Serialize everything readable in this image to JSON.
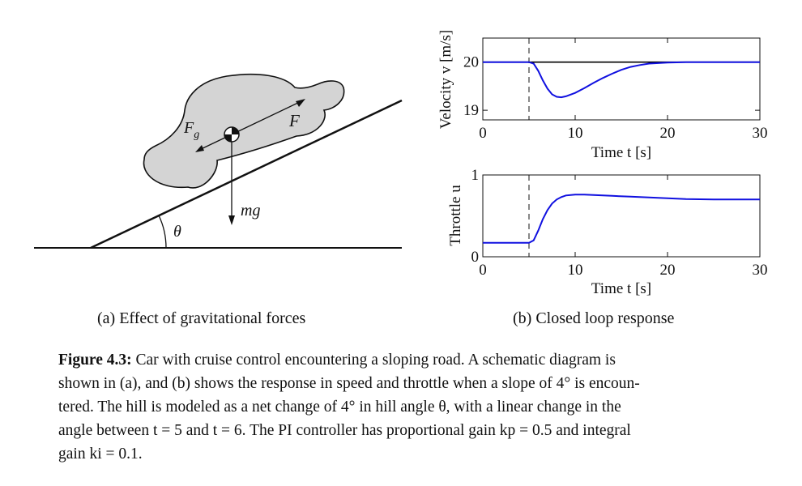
{
  "panel_a": {
    "caption": "(a) Effect of gravitational forces",
    "labels": {
      "gravity_force": "F",
      "gravity_subscript": "g",
      "drive_force": "F",
      "weight": "mg",
      "angle": "θ"
    }
  },
  "panel_b": {
    "caption": "(b) Closed loop response"
  },
  "chart_data": [
    {
      "type": "line",
      "ylabel": "Velocity v [m/s]",
      "xlabel": "Time t [s]",
      "xlim": [
        0,
        30
      ],
      "ylim": [
        18.8,
        20.5
      ],
      "xticks": [
        "0",
        "10",
        "20",
        "30"
      ],
      "yticks": [
        "19",
        "20"
      ],
      "reference_line": {
        "y": 20,
        "color": "#000000"
      },
      "event_marker": {
        "x": 5,
        "style": "dashed"
      },
      "series": [
        {
          "color": "#1010e0",
          "x": [
            0,
            5,
            5.5,
            6,
            6.5,
            7,
            7.5,
            8,
            8.5,
            9,
            10,
            11,
            12,
            13,
            14,
            15,
            16,
            17,
            18,
            20,
            22,
            25,
            30
          ],
          "y": [
            20,
            20,
            19.97,
            19.82,
            19.62,
            19.45,
            19.33,
            19.28,
            19.27,
            19.29,
            19.36,
            19.46,
            19.57,
            19.67,
            19.76,
            19.84,
            19.9,
            19.94,
            19.97,
            19.99,
            20.0,
            20.0,
            20.0
          ]
        }
      ]
    },
    {
      "type": "line",
      "ylabel": "Throttle u",
      "xlabel": "Time t [s]",
      "xlim": [
        0,
        30
      ],
      "ylim": [
        0,
        1
      ],
      "xticks": [
        "0",
        "10",
        "20",
        "30"
      ],
      "yticks": [
        "0",
        "1"
      ],
      "event_marker": {
        "x": 5,
        "style": "dashed"
      },
      "series": [
        {
          "color": "#1010e0",
          "x": [
            0,
            5,
            5.5,
            6,
            6.5,
            7,
            7.5,
            8,
            8.5,
            9,
            10,
            11,
            12,
            14,
            16,
            18,
            20,
            22,
            25,
            30
          ],
          "y": [
            0.17,
            0.17,
            0.2,
            0.32,
            0.46,
            0.57,
            0.65,
            0.7,
            0.73,
            0.75,
            0.76,
            0.76,
            0.755,
            0.745,
            0.735,
            0.725,
            0.715,
            0.705,
            0.7,
            0.7
          ]
        }
      ]
    }
  ],
  "caption": {
    "label": "Figure 4.3:",
    "lines": [
      "Car with cruise control encountering a sloping road. A schematic diagram is",
      "shown in (a), and (b) shows the response in speed and throttle when a slope of 4° is encoun-",
      "tered. The hill is modeled as a net change of 4° in hill angle θ, with a linear change in the",
      "angle between t = 5 and t = 6. The PI controller has proportional gain kp = 0.5 and integral",
      "gain ki = 0.1."
    ]
  }
}
